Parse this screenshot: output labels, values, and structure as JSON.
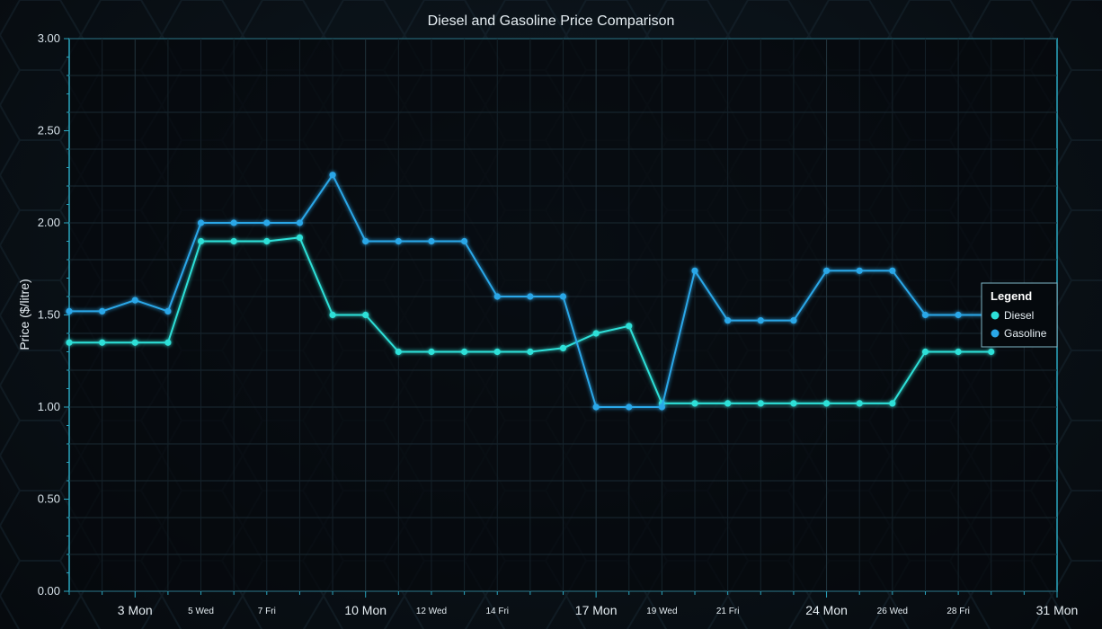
{
  "chart_data": {
    "type": "line",
    "title": "Diesel and Gasoline Price Comparison",
    "xlabel": "",
    "ylabel": "Price ($/litre)",
    "ylim": [
      0,
      3
    ],
    "y_ticks": [
      "0.00",
      "0.50",
      "1.00",
      "1.50",
      "2.00",
      "2.50",
      "3.00"
    ],
    "x_range": [
      1,
      31
    ],
    "x_ticks_major": [
      {
        "x": 3,
        "label": "3 Mon"
      },
      {
        "x": 10,
        "label": "10 Mon"
      },
      {
        "x": 17,
        "label": "17 Mon"
      },
      {
        "x": 24,
        "label": "24 Mon"
      },
      {
        "x": 31,
        "label": "31 Mon"
      }
    ],
    "x_ticks_minor": [
      {
        "x": 5,
        "label": "5 Wed"
      },
      {
        "x": 7,
        "label": "7 Fri"
      },
      {
        "x": 12,
        "label": "12 Wed"
      },
      {
        "x": 14,
        "label": "14 Fri"
      },
      {
        "x": 19,
        "label": "19 Wed"
      },
      {
        "x": 21,
        "label": "21 Fri"
      },
      {
        "x": 26,
        "label": "26 Wed"
      },
      {
        "x": 28,
        "label": "28 Fri"
      }
    ],
    "grid": true,
    "legend": {
      "title": "Legend",
      "position": "right"
    },
    "x": [
      1,
      2,
      3,
      4,
      5,
      6,
      7,
      8,
      9,
      10,
      11,
      12,
      13,
      14,
      15,
      16,
      17,
      18,
      19,
      20,
      21,
      22,
      23,
      24,
      25,
      26,
      27,
      28,
      29
    ],
    "series": [
      {
        "name": "Diesel",
        "color": "#2de0d8",
        "values": [
          1.35,
          1.35,
          1.35,
          1.35,
          1.9,
          1.9,
          1.9,
          1.92,
          1.5,
          1.5,
          1.3,
          1.3,
          1.3,
          1.3,
          1.3,
          1.32,
          1.4,
          1.44,
          1.02,
          1.02,
          1.02,
          1.02,
          1.02,
          1.02,
          1.02,
          1.02,
          1.3,
          1.3,
          1.3
        ]
      },
      {
        "name": "Gasoline",
        "color": "#2aa7e8",
        "values": [
          1.52,
          1.52,
          1.58,
          1.52,
          2.0,
          2.0,
          2.0,
          2.0,
          2.26,
          1.9,
          1.9,
          1.9,
          1.9,
          1.6,
          1.6,
          1.6,
          1.0,
          1.0,
          1.0,
          1.74,
          1.47,
          1.47,
          1.47,
          1.74,
          1.74,
          1.74,
          1.5,
          1.5,
          1.5
        ]
      }
    ]
  }
}
